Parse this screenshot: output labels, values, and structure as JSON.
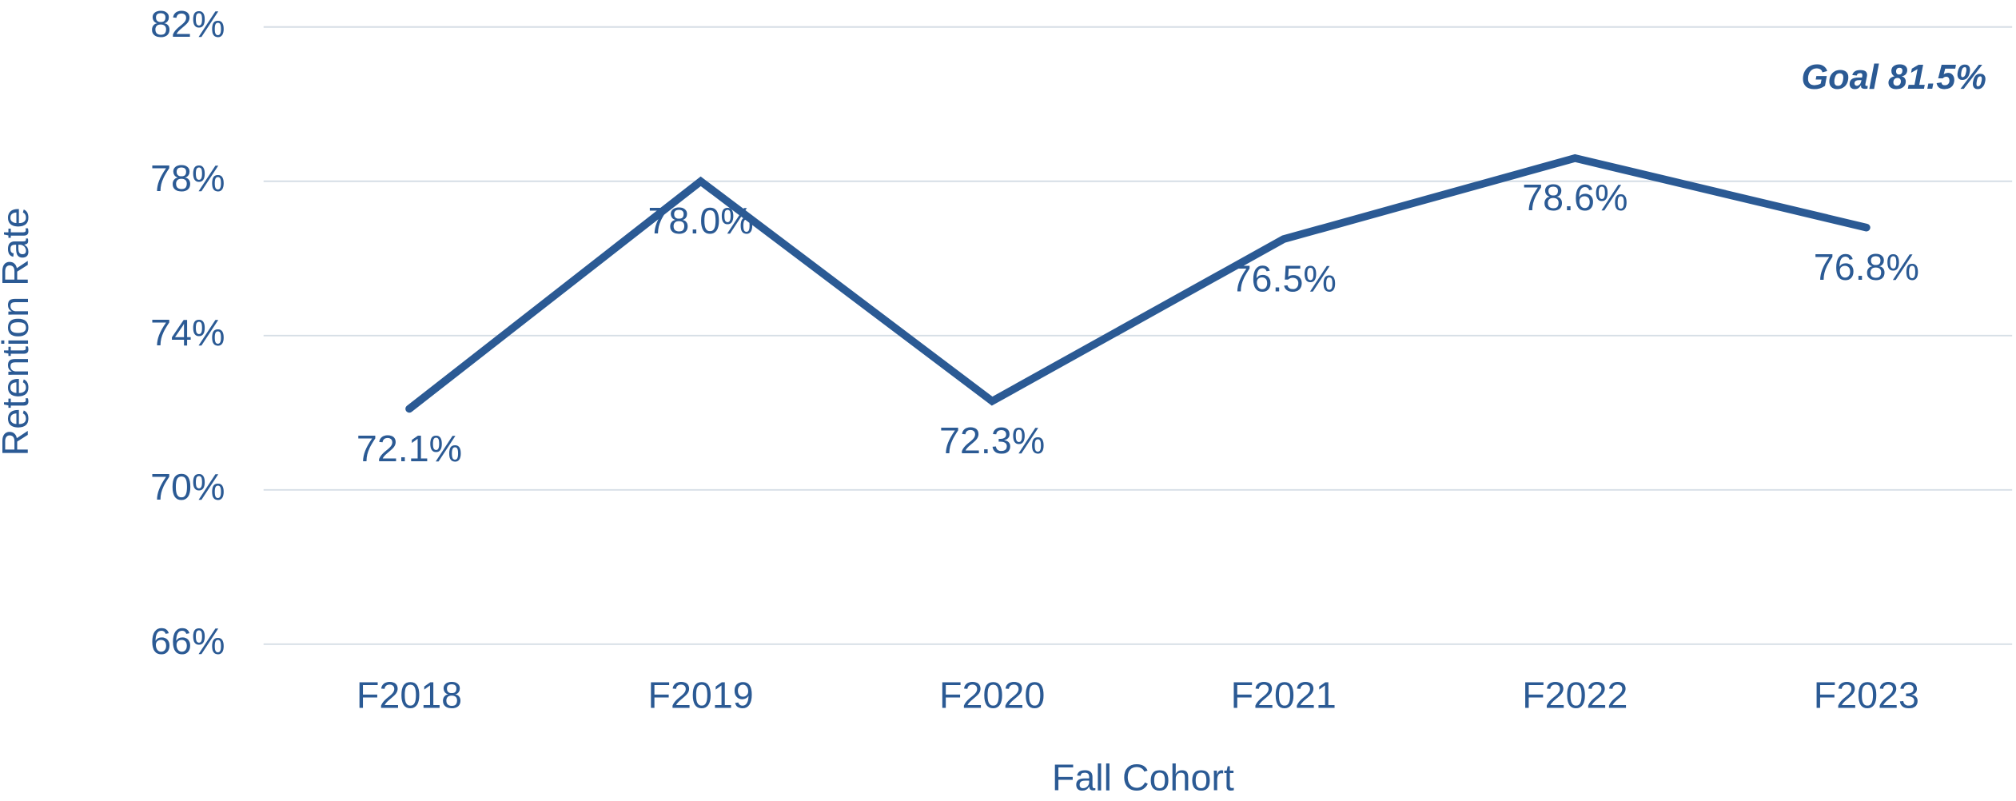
{
  "chart_data": {
    "type": "line",
    "xlabel": "Fall Cohort",
    "ylabel": "Retention Rate",
    "annotation": "Goal 81.5%",
    "categories": [
      "F2018",
      "F2019",
      "F2020",
      "F2021",
      "F2022",
      "F2023"
    ],
    "values": [
      72.1,
      78.0,
      72.3,
      76.5,
      78.6,
      76.8
    ],
    "value_labels": [
      "72.1%",
      "78.0%",
      "72.3%",
      "76.5%",
      "78.6%",
      "76.8%"
    ],
    "color": "#2b5a94",
    "ylim": [
      66,
      82
    ],
    "yticks": [
      {
        "value": 66,
        "label": "66%"
      },
      {
        "value": 70,
        "label": "70%"
      },
      {
        "value": 74,
        "label": "74%"
      },
      {
        "value": 78,
        "label": "78%"
      },
      {
        "value": 82,
        "label": "82%"
      }
    ],
    "grid": true
  }
}
